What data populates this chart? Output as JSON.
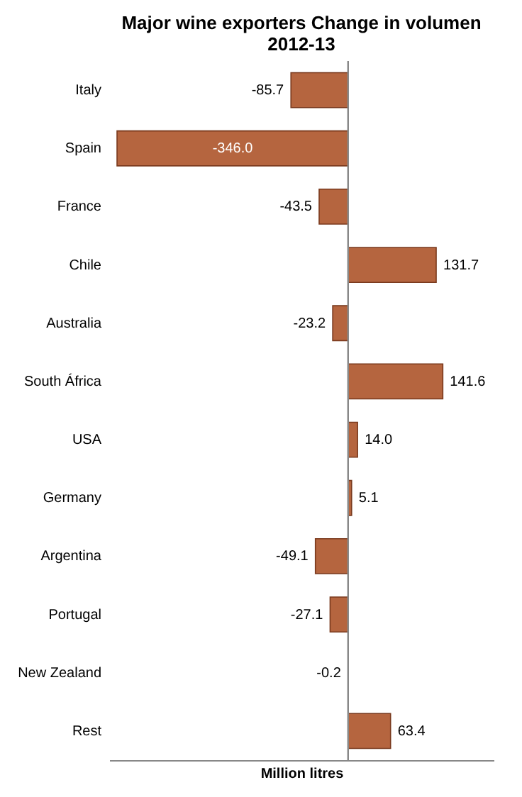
{
  "chart_data": {
    "type": "bar",
    "orientation": "horizontal",
    "title": "Major wine exporters Change in volumen 2012-13",
    "xlabel": "Million litres",
    "categories": [
      "Italy",
      "Spain",
      "France",
      "Chile",
      "Australia",
      "South África",
      "USA",
      "Germany",
      "Argentina",
      "Portugal",
      "New Zealand",
      "Rest"
    ],
    "values": [
      -85.7,
      -346.0,
      -43.5,
      131.7,
      -23.2,
      141.6,
      14.0,
      5.1,
      -49.1,
      -27.1,
      -0.2,
      63.4
    ],
    "value_labels": [
      "-85.7",
      "-346.0",
      "-43.5",
      "131.7",
      "-23.2",
      "141.6",
      "14.0",
      "5.1",
      "-49.1",
      "-27.1",
      "-0.2",
      "63.4"
    ],
    "color": "#b5653f",
    "grid": false
  }
}
